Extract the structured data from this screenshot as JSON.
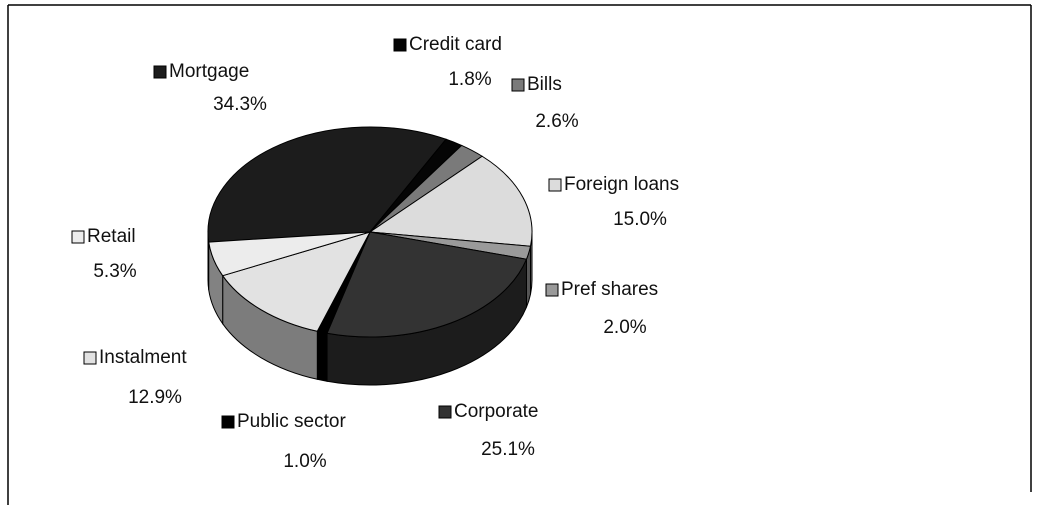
{
  "chart_data": {
    "type": "pie",
    "categories": [
      "Mortgage",
      "Credit card",
      "Bills",
      "Foreign loans",
      "Pref shares",
      "Corporate",
      "Public sector",
      "Instalment",
      "Retail"
    ],
    "values": [
      34.3,
      1.8,
      2.6,
      15.0,
      2.0,
      25.1,
      1.0,
      12.9,
      5.3
    ],
    "value_labels": [
      "34.3%",
      "1.8%",
      "2.6%",
      "15.0%",
      "2.0%",
      "25.1%",
      "1.0%",
      "12.9%",
      "5.3%"
    ],
    "colors": [
      "#1c1c1c",
      "#050505",
      "#7a7a7a",
      "#dcdcdc",
      "#9a9a9a",
      "#333333",
      "#000000",
      "#e2e2e2",
      "#ececec"
    ]
  }
}
